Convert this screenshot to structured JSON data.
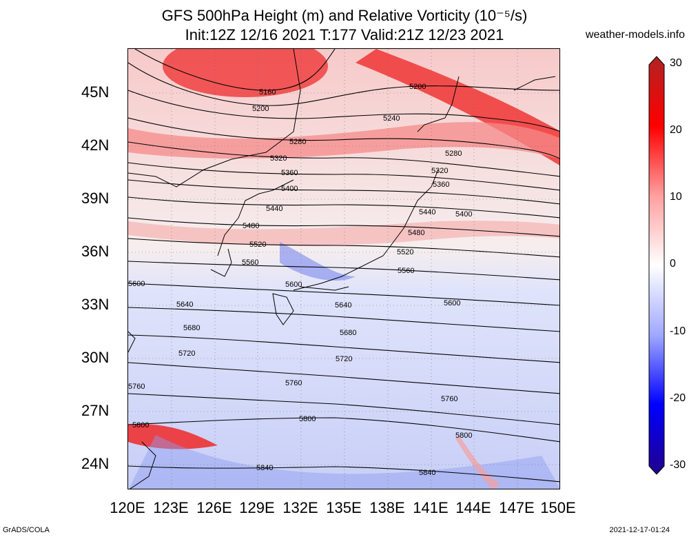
{
  "title": {
    "line1": "GFS 500hPa Height (m) and Relative Vorticity (10⁻⁵/s)",
    "line2": "Init:12Z 12/16 2021 T:177 Valid:21Z 12/23 2021"
  },
  "site": "weather-models.info",
  "lat_ticks": [
    "45N",
    "42N",
    "39N",
    "36N",
    "33N",
    "30N",
    "27N",
    "24N"
  ],
  "lon_ticks": [
    "120E",
    "123E",
    "126E",
    "129E",
    "132E",
    "135E",
    "138E",
    "141E",
    "144E",
    "147E",
    "150E"
  ],
  "colorbar": {
    "ticks": [
      "30",
      "20",
      "10",
      "0",
      "-10",
      "-20",
      "-30"
    ],
    "colors": [
      "#b22222",
      "#ff0000",
      "#ff9f9f",
      "#ffffff",
      "#9fa8ff",
      "#0000ff",
      "#22008b"
    ]
  },
  "contour_labels": [
    "5160",
    "5200",
    "5240",
    "5280",
    "5320",
    "5360",
    "5400",
    "5440",
    "5480",
    "5520",
    "5560",
    "5600",
    "5640",
    "5680",
    "5720",
    "5760",
    "5800",
    "5840"
  ],
  "footer_left": "GrADS/COLA",
  "footer_right": "2021-12-17-01:24"
}
